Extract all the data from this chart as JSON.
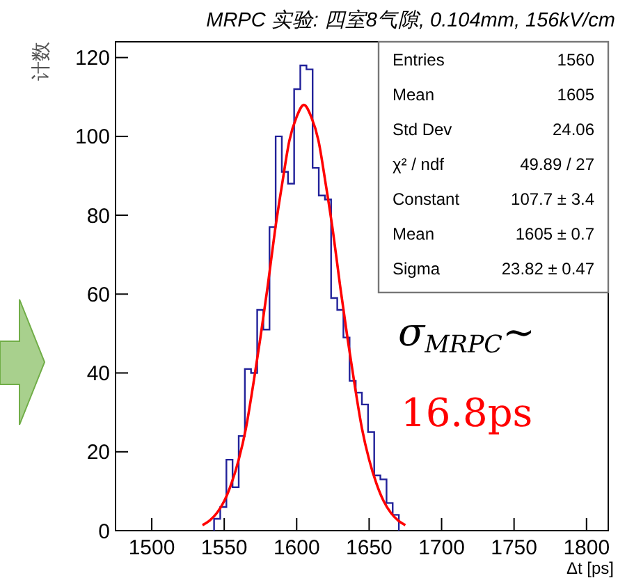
{
  "chart_data": {
    "type": "histogram",
    "title": "MRPC 实验: 四室8气隙, 0.104mm, 156kV/cm",
    "xlabel": "Δt [ps]",
    "ylabel": "计数",
    "xlim": [
      1475,
      1815
    ],
    "ylim": [
      0,
      124
    ],
    "xticks": [
      1500,
      1550,
      1600,
      1650,
      1700,
      1750,
      1800
    ],
    "yticks": [
      0,
      20,
      40,
      60,
      80,
      100,
      120
    ],
    "grid": false,
    "series": [
      {
        "type": "histogram",
        "color": "#22229a",
        "bins": [
          1543,
          1547.25,
          1551.5,
          1555.75,
          1560,
          1564.25,
          1568.5,
          1572.75,
          1577,
          1581.25,
          1585.5,
          1589.75,
          1594,
          1598.25,
          1602.5,
          1606.75,
          1611,
          1615.25,
          1619.5,
          1623.75,
          1628,
          1632.25,
          1636.5,
          1640.75,
          1645,
          1649.25,
          1653.5,
          1657.75,
          1662,
          1666.25,
          1670.5
        ],
        "values": [
          3,
          6,
          18,
          11,
          24,
          41,
          40,
          56,
          51,
          77,
          100,
          91,
          88,
          112,
          118,
          117,
          92,
          85,
          84,
          59,
          56,
          49,
          38,
          35,
          32,
          25,
          14,
          13,
          7,
          4
        ]
      },
      {
        "type": "line",
        "color": "#ff0000",
        "x": [
          1535,
          1540,
          1545,
          1550,
          1555,
          1560,
          1565,
          1570,
          1575,
          1580,
          1585,
          1590,
          1595,
          1600,
          1605,
          1610,
          1615,
          1620,
          1625,
          1630,
          1635,
          1640,
          1645,
          1650,
          1655,
          1660,
          1665,
          1670,
          1675
        ],
        "values": [
          1.4,
          2.6,
          4.5,
          7.5,
          12,
          18,
          26,
          37,
          49,
          62,
          76,
          88,
          99,
          105,
          108,
          105,
          99,
          88,
          76,
          62,
          49,
          37,
          26,
          18,
          12,
          7.5,
          4.5,
          2.6,
          1.4
        ]
      }
    ],
    "annotations": [
      "Entries\t1560",
      "Mean\t1605",
      "Std Dev\t24.06",
      "χ² / ndf\t49.89 / 27",
      "Constant\t107.7 ± 3.4",
      "Mean\t1605 ± 0.7",
      "Sigma\t23.82 ± 0.47",
      "σ$_{MRPC}$~",
      "16.8ps"
    ]
  }
}
